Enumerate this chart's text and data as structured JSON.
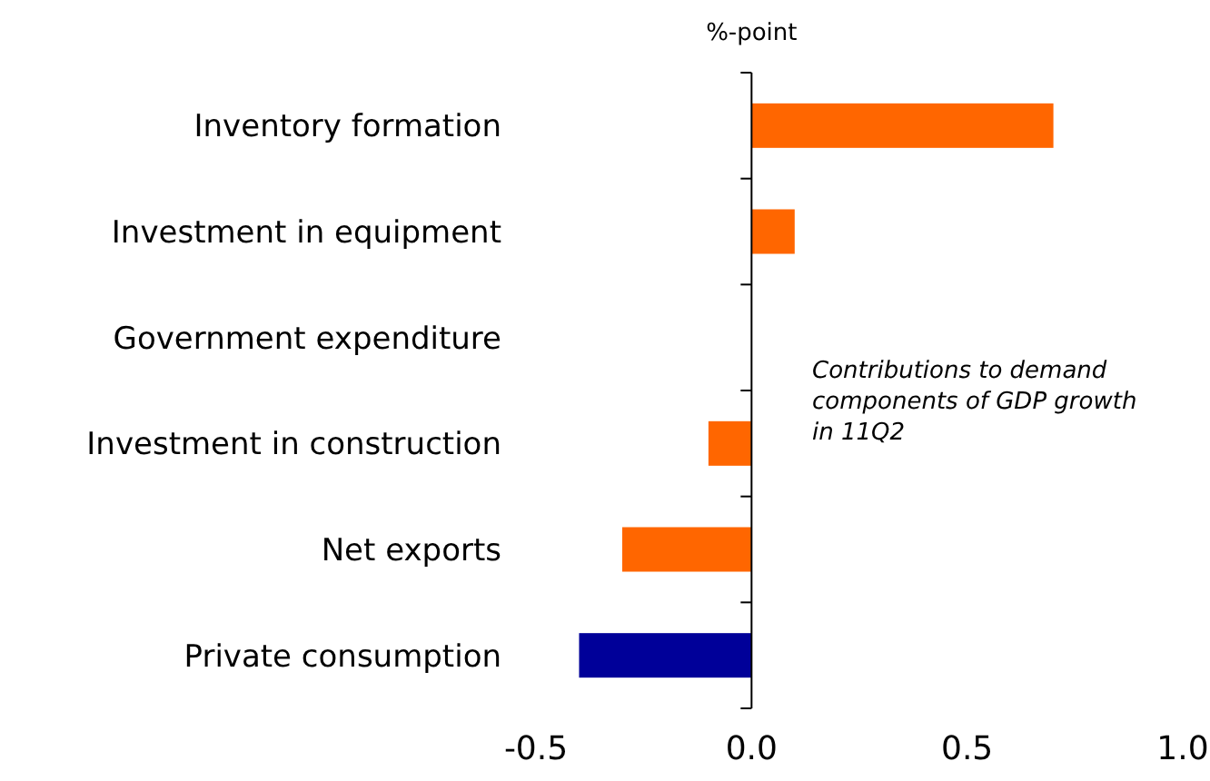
{
  "chart_data": {
    "type": "bar",
    "orientation": "horizontal",
    "xlabel": "%-point",
    "categories": [
      "Inventory formation",
      "Investment in equipment",
      "Government expenditure",
      "Investment in construction",
      "Net exports",
      "Private consumption"
    ],
    "values": [
      0.7,
      0.1,
      0,
      -0.1,
      -0.3,
      -0.4
    ],
    "colors": [
      "#ff6600",
      "#ff6600",
      "#ff6600",
      "#ff6600",
      "#ff6600",
      "#000099"
    ],
    "xlim": [
      -0.5,
      1.0
    ],
    "xticks": [
      {
        "value": -0.5,
        "label": "-0.5"
      },
      {
        "value": 0,
        "label": "0.0"
      },
      {
        "value": 0.5,
        "label": "0.5"
      },
      {
        "value": 1.0,
        "label": "1.0"
      }
    ],
    "annotations": [
      "Contributions to demand components of GDP growth in 11Q2"
    ]
  }
}
